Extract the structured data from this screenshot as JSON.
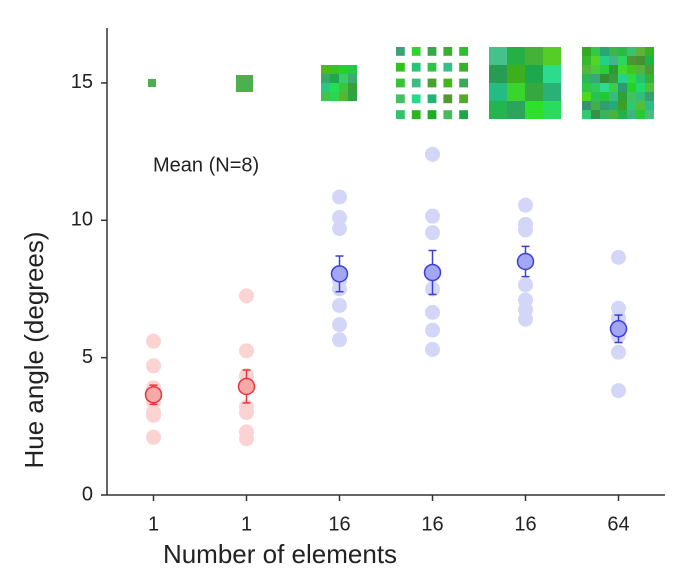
{
  "chart_data": {
    "type": "strip",
    "annotation": "Mean (N=8)",
    "xlabel": "Number of elements",
    "ylabel": "Hue angle (degrees)",
    "categories": [
      "1",
      "1",
      "16",
      "16",
      "16",
      "64"
    ],
    "points": [
      [
        5.6,
        4.7,
        3.9,
        3.6,
        3.4,
        3.0,
        2.9,
        2.1
      ],
      [
        7.25,
        5.25,
        4.35,
        3.95,
        3.2,
        3.0,
        2.3,
        2.05
      ],
      [
        10.85,
        10.1,
        9.7,
        7.8,
        7.5,
        6.9,
        6.2,
        5.65
      ],
      [
        12.4,
        10.15,
        9.55,
        8.0,
        7.5,
        6.65,
        6.0,
        5.3
      ],
      [
        10.55,
        9.85,
        9.65,
        8.5,
        7.65,
        7.1,
        6.75,
        6.4
      ],
      [
        8.65,
        6.8,
        6.45,
        6.2,
        6.0,
        5.8,
        5.2,
        3.8
      ]
    ],
    "means": [
      3.65,
      3.95,
      8.05,
      8.1,
      8.5,
      6.05
    ],
    "errors": [
      0.35,
      0.6,
      0.65,
      0.8,
      0.55,
      0.5
    ],
    "point_colors": [
      "#fbd3d3",
      "#fbd3d3",
      "#d3d6f7",
      "#d3d6f7",
      "#d3d6f7",
      "#d3d6f7"
    ],
    "mean_fills": [
      "#f6a9a9",
      "#f6a9a9",
      "#a3a6f0",
      "#a3a6f0",
      "#a3a6f0",
      "#a3a6f0"
    ],
    "mean_strokes": [
      "#e8353c",
      "#e8353c",
      "#3b3fd6",
      "#3b3fd6",
      "#3b3fd6",
      "#3b3fd6"
    ],
    "ylim": [
      0,
      17
    ],
    "yticks": [
      0,
      5,
      10,
      15
    ]
  }
}
